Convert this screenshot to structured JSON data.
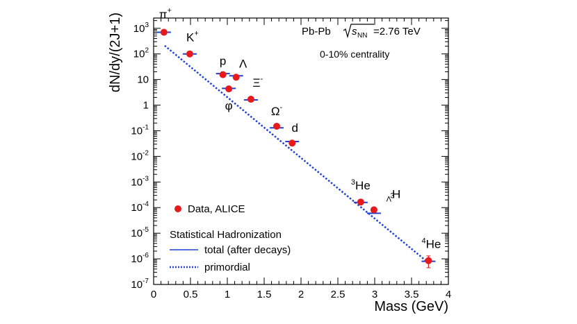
{
  "chart_data": {
    "type": "scatter",
    "title": "",
    "xlabel": "Mass (GeV)",
    "ylabel": "dN/dy/(2J+1)",
    "xlim": [
      0,
      4
    ],
    "ylim_log10": [
      -7,
      3.4
    ],
    "x_ticks": [
      "0",
      "0.5",
      "1",
      "1.5",
      "2",
      "2.5",
      "3",
      "3.5",
      "4"
    ],
    "x_tick_values": [
      0,
      0.5,
      1,
      1.5,
      2,
      2.5,
      3,
      3.5,
      4
    ],
    "y_ticks": [
      {
        "value": 1000,
        "base": "10",
        "exp": "3"
      },
      {
        "value": 100,
        "base": "10",
        "exp": "2"
      },
      {
        "value": 10,
        "base": "10",
        "exp": ""
      },
      {
        "value": 1,
        "base": "1",
        "exp": ""
      },
      {
        "value": 0.1,
        "base": "10",
        "exp": "-1"
      },
      {
        "value": 0.01,
        "base": "10",
        "exp": "-2"
      },
      {
        "value": 0.001,
        "base": "10",
        "exp": "-3"
      },
      {
        "value": 0.0001,
        "base": "10",
        "exp": "-4"
      },
      {
        "value": 1e-05,
        "base": "10",
        "exp": "-5"
      },
      {
        "value": 1e-06,
        "base": "10",
        "exp": "-6"
      },
      {
        "value": 1e-07,
        "base": "10",
        "exp": "-7"
      }
    ],
    "annotations": {
      "system_prefix": "Pb-Pb ",
      "sqrt_s": "s",
      "sqrt_s_sub": "NN",
      "energy": "=2.76 TeV",
      "centrality": "0-10% centrality"
    },
    "legend": {
      "placement": "bottom-left",
      "data_label": "Data, ALICE",
      "model_title": "Statistical Hadronization",
      "total_label": "total (after decays)",
      "primordial_label": "primordial"
    },
    "series": [
      {
        "name": "Data, ALICE",
        "color": "#e41a1c",
        "points": [
          {
            "label": "π",
            "sup": "+",
            "pre": "",
            "sub": "",
            "mass": 0.14,
            "y": 700,
            "err_lo": 650,
            "err_hi": 760
          },
          {
            "label": "K",
            "sup": "+",
            "pre": "",
            "sub": "",
            "mass": 0.49,
            "y": 100,
            "err_lo": 92,
            "err_hi": 108
          },
          {
            "label": "p",
            "sup": "",
            "pre": "",
            "sub": "",
            "mass": 0.94,
            "y": 15.5,
            "err_lo": 14.5,
            "err_hi": 16.5
          },
          {
            "label": "φ",
            "sup": "",
            "pre": "",
            "sub": "",
            "mass": 1.02,
            "y": 4.3,
            "err_lo": 3.9,
            "err_hi": 4.7
          },
          {
            "label": "Λ",
            "sup": "",
            "pre": "",
            "sub": "",
            "mass": 1.12,
            "y": 12.3,
            "err_lo": 11.3,
            "err_hi": 13.3
          },
          {
            "label": "Ξ",
            "sup": "-",
            "pre": "",
            "sub": "",
            "mass": 1.32,
            "y": 1.7,
            "err_lo": 1.55,
            "err_hi": 1.85
          },
          {
            "label": "Ω",
            "sup": "-",
            "pre": "",
            "sub": "",
            "mass": 1.67,
            "y": 0.15,
            "err_lo": 0.13,
            "err_hi": 0.17
          },
          {
            "label": "d",
            "sup": "",
            "pre": "",
            "sub": "",
            "mass": 1.88,
            "y": 0.033,
            "err_lo": 0.029,
            "err_hi": 0.037
          },
          {
            "label": "He",
            "sup": "",
            "pre": "3",
            "sub": "",
            "mass": 2.81,
            "y": 0.000165,
            "err_lo": 0.00014,
            "err_hi": 0.00019
          },
          {
            "label": "H",
            "sup": "",
            "pre": "3",
            "sub": "Λ",
            "mass": 2.99,
            "y": 8.2e-05,
            "err_lo": 7e-05,
            "err_hi": 9.5e-05
          },
          {
            "label": "He",
            "sup": "",
            "pre": "4",
            "sub": "",
            "mass": 3.73,
            "y": 8.5e-07,
            "err_lo": 4.5e-07,
            "err_hi": 1.3e-06
          }
        ]
      },
      {
        "name": "total (after decays)",
        "color": "#1f3fd6",
        "style": "solid",
        "points": [
          {
            "mass": 0.14,
            "y": 700
          },
          {
            "mass": 0.49,
            "y": 100
          },
          {
            "mass": 0.94,
            "y": 17
          },
          {
            "mass": 1.02,
            "y": 4.5
          },
          {
            "mass": 1.12,
            "y": 14
          },
          {
            "mass": 1.32,
            "y": 1.6
          },
          {
            "mass": 1.67,
            "y": 0.13
          },
          {
            "mass": 1.88,
            "y": 0.038
          },
          {
            "mass": 2.81,
            "y": 0.00016
          },
          {
            "mass": 2.99,
            "y": 6e-05
          },
          {
            "mass": 3.73,
            "y": 8e-07
          }
        ]
      },
      {
        "name": "primordial",
        "color": "#1f3fd6",
        "style": "dotted",
        "x": [
          0.15,
          3.73
        ],
        "y": [
          210,
          7e-07
        ]
      }
    ]
  }
}
